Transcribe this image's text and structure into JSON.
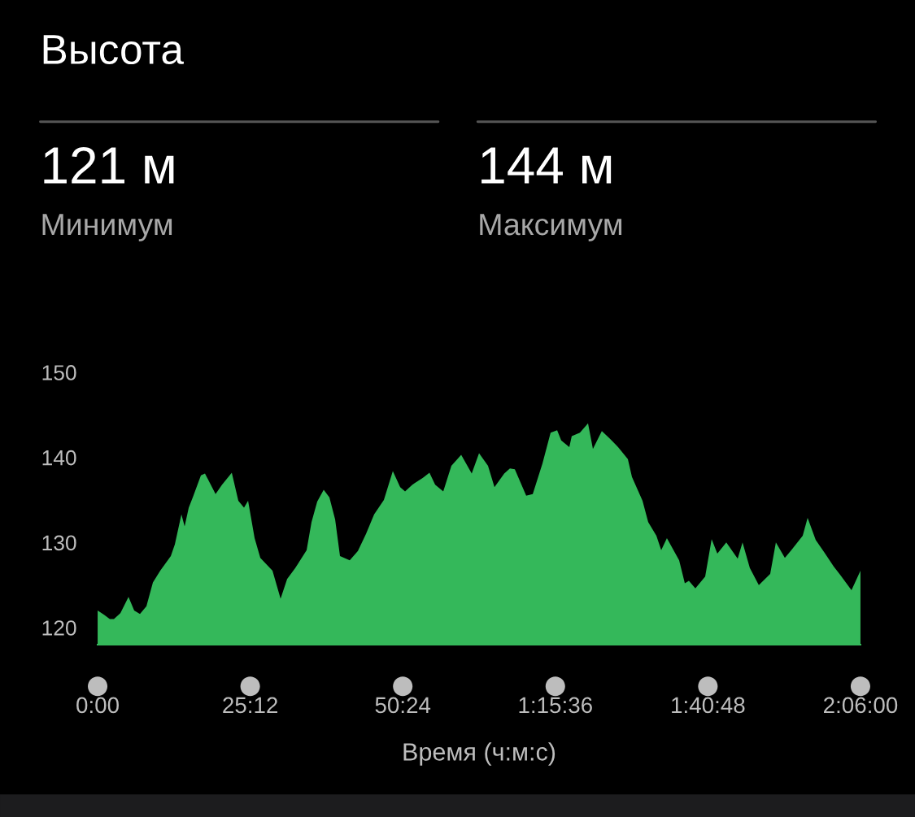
{
  "chart_data": {
    "type": "area",
    "title": "Высота",
    "xlabel": "Время (ч:м:с)",
    "annotations": [
      "121 м",
      "Минимум",
      "144 м",
      "Максимум"
    ],
    "xlim": [
      0,
      126
    ],
    "ylim": [
      118,
      150
    ],
    "xticks": [
      {
        "value": 0,
        "label": "0:00"
      },
      {
        "value": 25.2,
        "label": "25:12"
      },
      {
        "value": 50.4,
        "label": "50:24"
      },
      {
        "value": 75.6,
        "label": "1:15:36"
      },
      {
        "value": 100.8,
        "label": "1:40:48"
      },
      {
        "value": 126,
        "label": "2:06:00"
      }
    ],
    "yticks": [
      120,
      130,
      140,
      150
    ],
    "grid": false,
    "series": [
      {
        "color": "#34b85a",
        "x": [
          0,
          1.07,
          2.01,
          2.69,
          3.76,
          5.1,
          6.04,
          6.99,
          8.06,
          9.13,
          10.34,
          12.09,
          12.76,
          13.84,
          14.37,
          15.05,
          15.72,
          17.06,
          17.73,
          19.48,
          20.55,
          22.16,
          23.24,
          24.18,
          24.85,
          25.93,
          26.87,
          28.88,
          30.22,
          31.3,
          32.64,
          33.18,
          34.52,
          35.33,
          36.27,
          37.34,
          38.28,
          39.23,
          40.03,
          41.64,
          42.99,
          44.33,
          45.67,
          47.28,
          48.76,
          49.97,
          50.78,
          51.99,
          53.73,
          54.81,
          55.75,
          57.09,
          58.43,
          60.05,
          61.79,
          63.0,
          64.48,
          65.55,
          67.16,
          68.1,
          68.91,
          70.79,
          71.87,
          73.48,
          74.82,
          75.9,
          76.57,
          77.91,
          78.31,
          79.66,
          81.0,
          81.81,
          83.28,
          84.63,
          85.97,
          87.58,
          88.26,
          90.0,
          90.94,
          92.29,
          93.09,
          94.03,
          96.05,
          96.99,
          97.66,
          98.73,
          100.35,
          101.42,
          102.36,
          103.84,
          105.72,
          106.52,
          107.73,
          109.21,
          111.09,
          112.03,
          113.51,
          114.58,
          116.46,
          117.27,
          118.61,
          119.96,
          121.57,
          122.64,
          124.52,
          126.0
        ],
        "values": [
          122.0,
          121.5,
          121.0,
          121.0,
          121.7,
          123.6,
          122.0,
          121.6,
          122.5,
          125.3,
          126.7,
          128.4,
          129.8,
          133.3,
          131.9,
          134.1,
          135.3,
          137.9,
          138.1,
          135.7,
          136.8,
          138.2,
          134.9,
          134.1,
          134.9,
          130.5,
          128.2,
          126.7,
          123.4,
          125.7,
          127.0,
          127.6,
          129.1,
          132.4,
          134.8,
          136.2,
          135.3,
          132.7,
          128.4,
          127.9,
          129.0,
          131.0,
          133.3,
          135.0,
          138.4,
          136.5,
          136.0,
          136.8,
          137.6,
          138.2,
          136.8,
          136.0,
          139.0,
          140.3,
          138.1,
          140.5,
          139.0,
          136.5,
          138.1,
          138.7,
          138.6,
          135.5,
          135.7,
          139.3,
          142.9,
          143.2,
          142.0,
          141.2,
          142.5,
          142.9,
          144.0,
          141.0,
          143.1,
          142.2,
          141.2,
          139.8,
          137.7,
          134.9,
          132.4,
          130.8,
          129.1,
          130.5,
          127.9,
          125.2,
          125.5,
          124.6,
          126.0,
          130.4,
          128.7,
          130.0,
          128.1,
          130.0,
          127.0,
          125.0,
          126.3,
          130.0,
          128.2,
          129.1,
          130.8,
          132.9,
          130.3,
          128.9,
          127.2,
          126.2,
          124.4,
          126.7
        ]
      }
    ]
  }
}
